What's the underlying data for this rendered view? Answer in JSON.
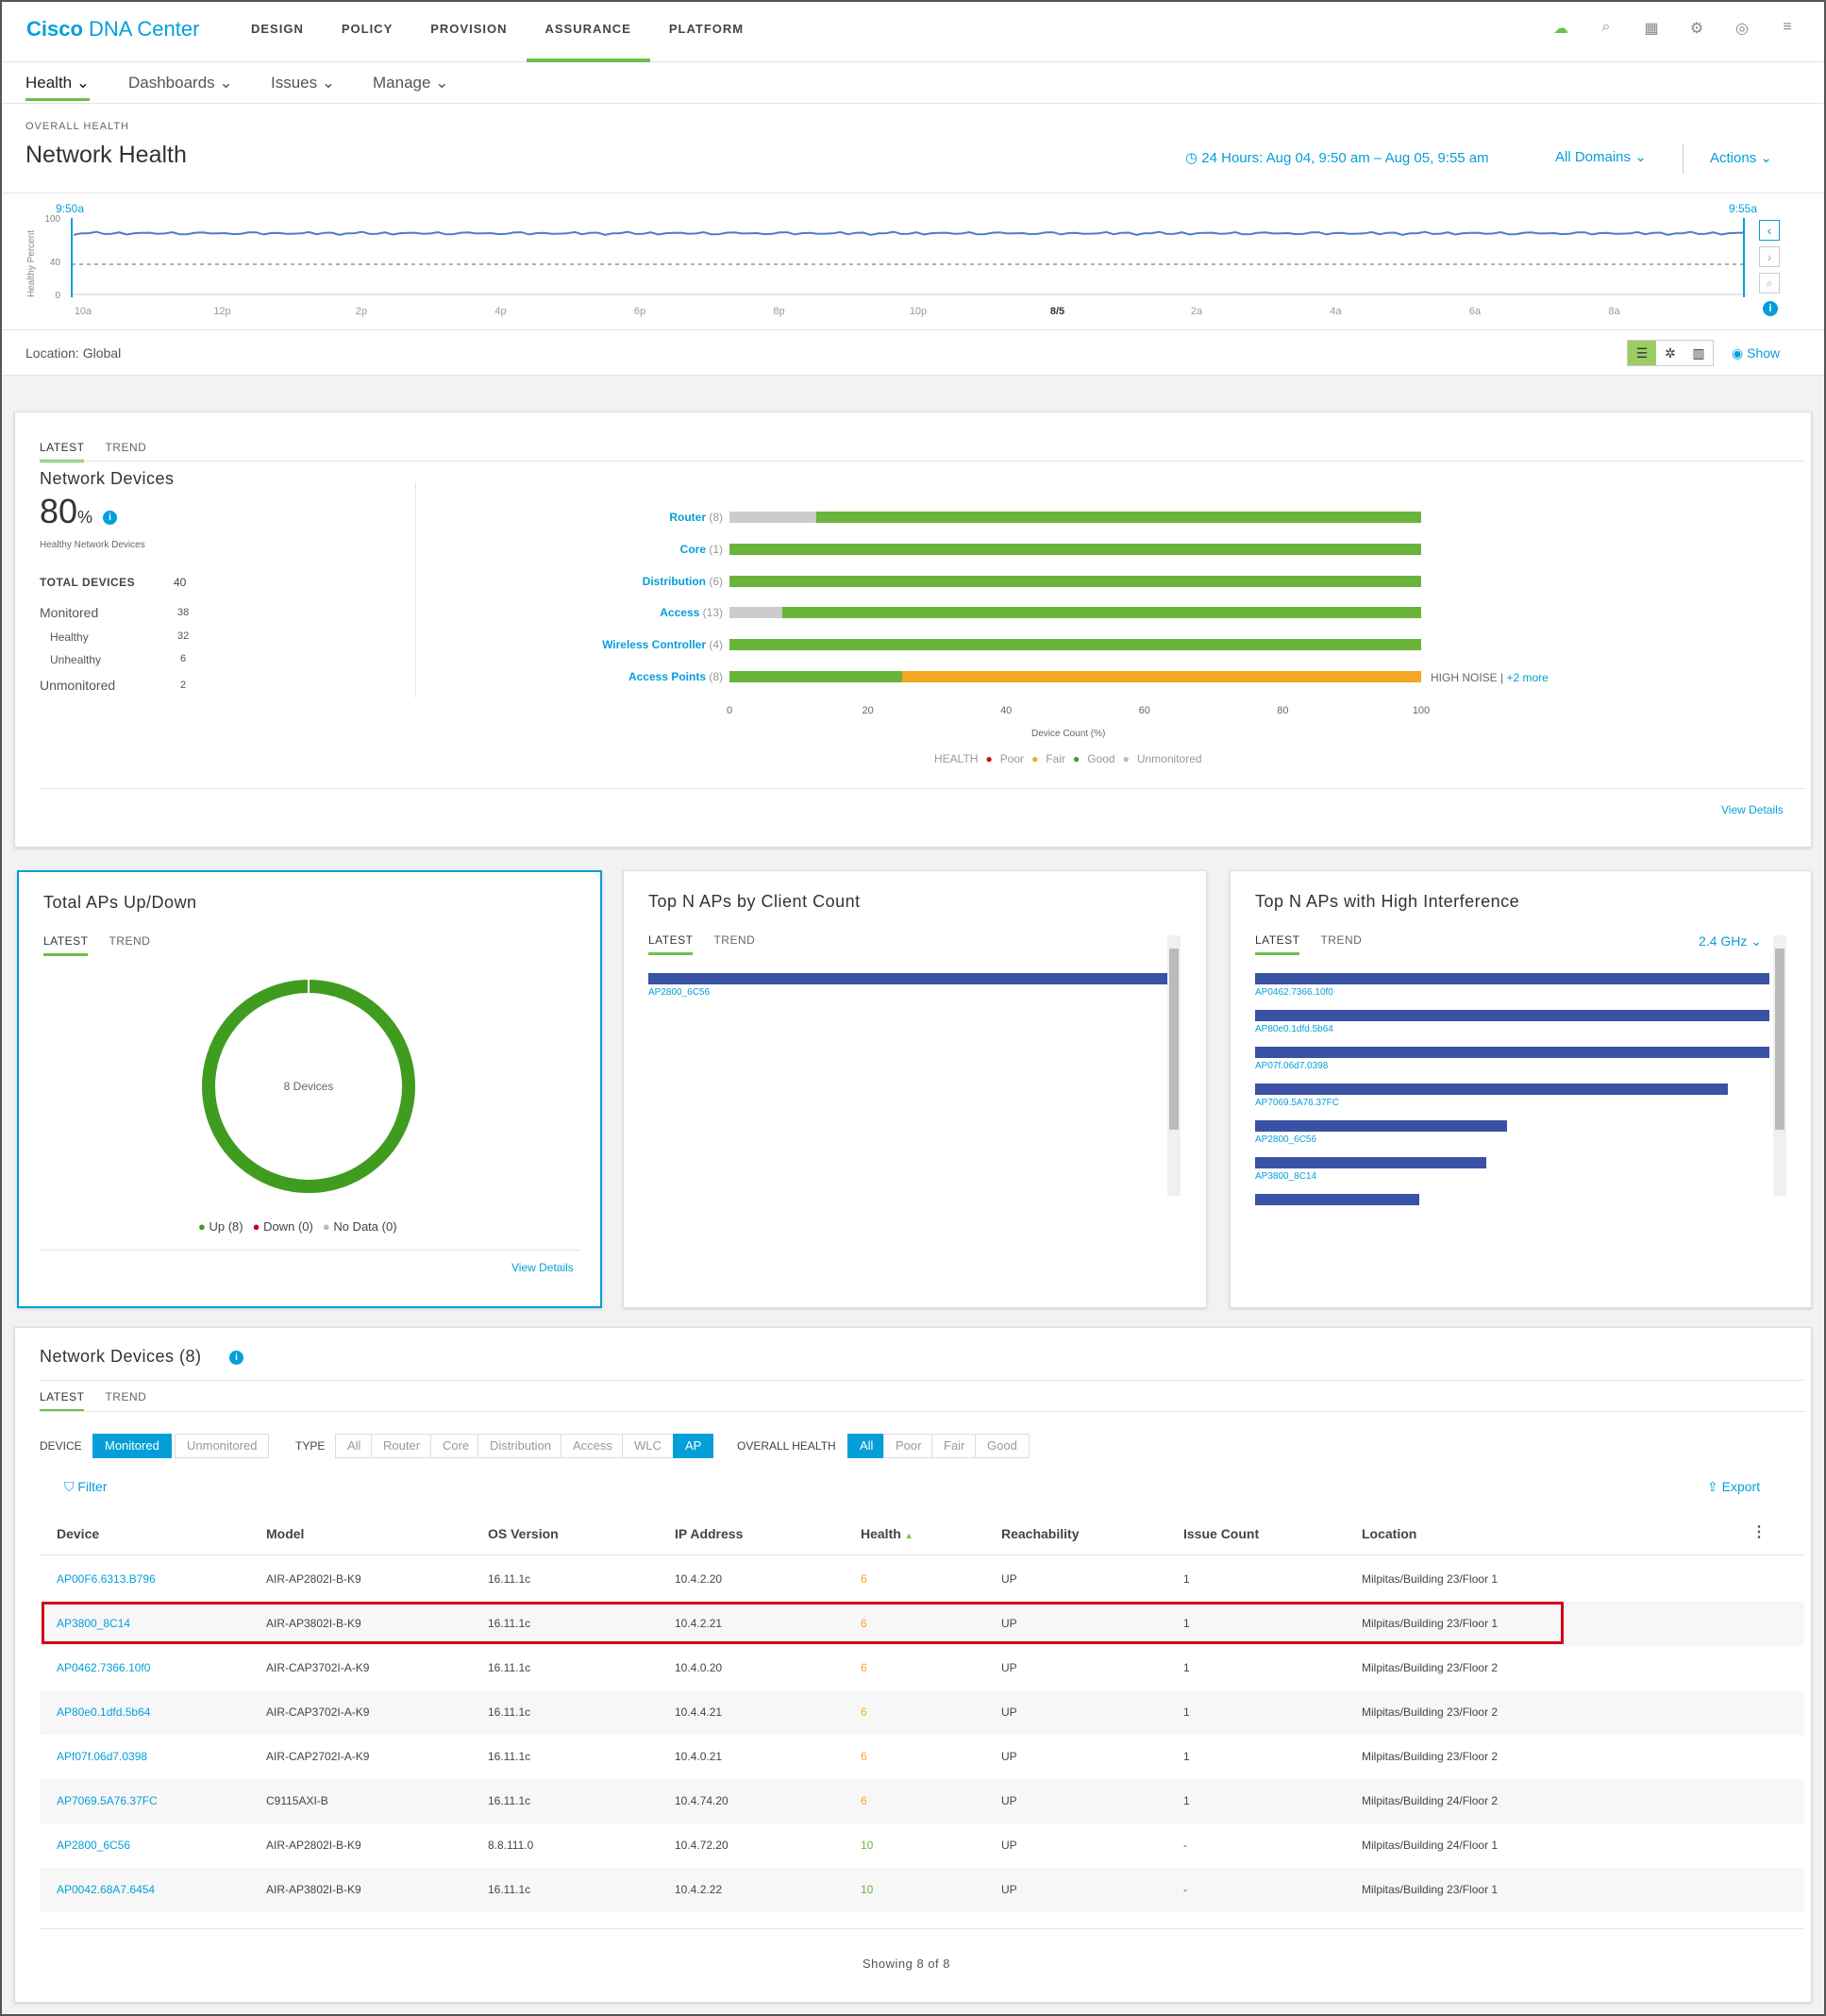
{
  "app": {
    "brand_bold": "Cisco",
    "brand_rest": " DNA Center"
  },
  "nav": [
    "DESIGN",
    "POLICY",
    "PROVISION",
    "ASSURANCE",
    "PLATFORM"
  ],
  "subnav": [
    "Health",
    "Dashboards",
    "Issues",
    "Manage"
  ],
  "header": {
    "overline": "OVERALL HEALTH",
    "title": "Network Health",
    "timerange": "24 Hours: Aug 04, 9:50 am – Aug 05, 9:55 am",
    "domains": "All Domains",
    "actions": "Actions"
  },
  "timeline": {
    "start_label": "9:50a",
    "end_label": "9:55a",
    "ylabel": "Healthy Percent",
    "yticks": [
      "100",
      "40",
      "0"
    ],
    "xticks": [
      "10a",
      "12p",
      "2p",
      "4p",
      "6p",
      "8p",
      "10p",
      "8/5",
      "2a",
      "4a",
      "6a",
      "8a"
    ],
    "health_percent": 80,
    "threshold": 40
  },
  "location": {
    "label": "Location: Global",
    "show": "Show"
  },
  "network_card": {
    "tabs": [
      "LATEST",
      "TREND"
    ],
    "title": "Network Devices",
    "percent": "80",
    "pct_sign": "%",
    "healthy_label": "Healthy Network Devices",
    "total_label": "TOTAL DEVICES",
    "total_value": "40",
    "stats": [
      {
        "label": "Monitored",
        "value": "38"
      },
      {
        "label": "Healthy",
        "value": "32"
      },
      {
        "label": "Unhealthy",
        "value": "6"
      },
      {
        "label": "Unmonitored",
        "value": "2"
      }
    ],
    "view_details": "View Details"
  },
  "chart_data": {
    "type": "bar",
    "orientation": "horizontal",
    "stacked": true,
    "xlabel": "Device Count (%)",
    "xlim": [
      0,
      100
    ],
    "xticks": [
      "0",
      "20",
      "40",
      "60",
      "80",
      "100"
    ],
    "categories": [
      {
        "name": "Router",
        "count": "(8)"
      },
      {
        "name": "Core",
        "count": "(1)"
      },
      {
        "name": "Distribution",
        "count": "(6)"
      },
      {
        "name": "Access",
        "count": "(13)"
      },
      {
        "name": "Wireless Controller",
        "count": "(4)"
      },
      {
        "name": "Access Points",
        "count": "(8)"
      }
    ],
    "series": [
      {
        "name": "Unmonitored",
        "color": "#cccccc",
        "values": [
          12.5,
          0,
          0,
          7.7,
          0,
          0
        ]
      },
      {
        "name": "Good",
        "color": "#6ab43c",
        "values": [
          87.5,
          100,
          100,
          92.3,
          100,
          25
        ]
      },
      {
        "name": "Fair",
        "color": "#f5a623",
        "values": [
          0,
          0,
          0,
          0,
          0,
          75
        ]
      },
      {
        "name": "Poor",
        "color": "#d0021b",
        "values": [
          0,
          0,
          0,
          0,
          0,
          0
        ]
      }
    ],
    "annotation": {
      "text": "HIGH NOISE",
      "sep": "|",
      "more": "+2 more"
    },
    "legend": {
      "title": "HEALTH",
      "items": [
        {
          "label": "Poor",
          "color": "#d0021b"
        },
        {
          "label": "Fair",
          "color": "#f5a623"
        },
        {
          "label": "Good",
          "color": "#3f9c1f"
        },
        {
          "label": "Unmonitored",
          "color": "#bbbbbb"
        }
      ]
    }
  },
  "aps_updown": {
    "title": "Total APs Up/Down",
    "tabs": [
      "LATEST",
      "TREND"
    ],
    "center": "8 Devices",
    "up": 8,
    "down": 0,
    "nodata": 0,
    "legend": [
      "Up (8)",
      "Down (0)",
      "No Data (0)"
    ],
    "view_details": "View Details"
  },
  "top_client": {
    "title": "Top N APs by Client Count",
    "tabs": [
      "LATEST",
      "TREND"
    ],
    "bars": [
      {
        "label": "AP2800_6C56",
        "value": 1.0
      }
    ]
  },
  "top_interf": {
    "title": "Top N APs with High Interference",
    "tabs": [
      "LATEST",
      "TREND"
    ],
    "band": "2.4 GHz",
    "bars": [
      {
        "label": "AP0462.7366.10f0",
        "value": 1.0
      },
      {
        "label": "AP80e0.1dfd.5b64",
        "value": 1.0
      },
      {
        "label": "AP07f.06d7.0398",
        "value": 1.0
      },
      {
        "label": "AP7069.5A76.37FC",
        "value": 0.92
      },
      {
        "label": "AP2800_6C56",
        "value": 0.49
      },
      {
        "label": "AP3800_8C14",
        "value": 0.45
      },
      {
        "label": "",
        "value": 0.32
      }
    ]
  },
  "devices": {
    "title": "Network Devices (8)",
    "tabs": [
      "LATEST",
      "TREND"
    ],
    "filters": {
      "device_label": "DEVICE",
      "device_opts": [
        "Monitored",
        "Unmonitored"
      ],
      "type_label": "TYPE",
      "type_opts": [
        "All",
        "Router",
        "Core",
        "Distribution",
        "Access",
        "WLC",
        "AP"
      ],
      "health_label": "OVERALL HEALTH",
      "health_opts": [
        "All",
        "Poor",
        "Fair",
        "Good"
      ]
    },
    "filter_btn": "Filter",
    "export_btn": "Export",
    "columns": [
      "Device",
      "Model",
      "OS Version",
      "IP Address",
      "Health",
      "Reachability",
      "Issue Count",
      "Location"
    ],
    "rows": [
      [
        "AP00F6.6313.B796",
        "AIR-AP2802I-B-K9",
        "16.11.1c",
        "10.4.2.20",
        "6",
        "UP",
        "1",
        "Milpitas/Building 23/Floor 1"
      ],
      [
        "AP3800_8C14",
        "AIR-AP3802I-B-K9",
        "16.11.1c",
        "10.4.2.21",
        "6",
        "UP",
        "1",
        "Milpitas/Building 23/Floor 1"
      ],
      [
        "AP0462.7366.10f0",
        "AIR-CAP3702I-A-K9",
        "16.11.1c",
        "10.4.0.20",
        "6",
        "UP",
        "1",
        "Milpitas/Building 23/Floor 2"
      ],
      [
        "AP80e0.1dfd.5b64",
        "AIR-CAP3702I-A-K9",
        "16.11.1c",
        "10.4.4.21",
        "6",
        "UP",
        "1",
        "Milpitas/Building 23/Floor 2"
      ],
      [
        "APf07f.06d7.0398",
        "AIR-CAP2702I-A-K9",
        "16.11.1c",
        "10.4.0.21",
        "6",
        "UP",
        "1",
        "Milpitas/Building 23/Floor 2"
      ],
      [
        "AP7069.5A76.37FC",
        "C9115AXI-B",
        "16.11.1c",
        "10.4.74.20",
        "6",
        "UP",
        "1",
        "Milpitas/Building 24/Floor 2"
      ],
      [
        "AP2800_6C56",
        "AIR-AP2802I-B-K9",
        "8.8.111.0",
        "10.4.72.20",
        "10",
        "UP",
        "-",
        "Milpitas/Building 24/Floor 1"
      ],
      [
        "AP0042.68A7.6454",
        "AIR-AP3802I-B-K9",
        "16.11.1c",
        "10.4.2.22",
        "10",
        "UP",
        "-",
        "Milpitas/Building 23/Floor 1"
      ]
    ],
    "footer": "Showing 8 of 8"
  },
  "colors": {
    "accent": "#049fd9",
    "good": "#6ab43c",
    "fair": "#f5a623",
    "highlight": "#d0021b"
  }
}
